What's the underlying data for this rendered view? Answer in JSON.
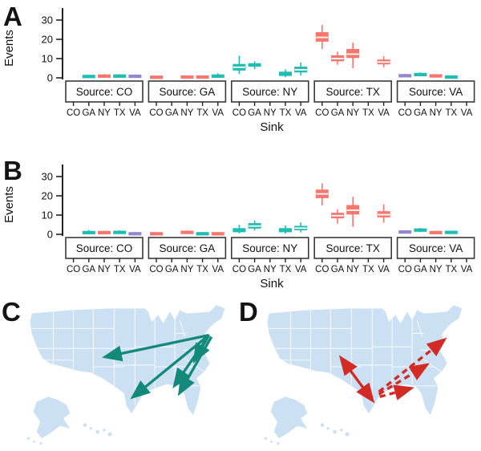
{
  "panels": {
    "a": "A",
    "b": "B",
    "c": "C",
    "d": "D"
  },
  "palette": {
    "red": "#F8766D",
    "teal": "#1FBDB2",
    "purple": "#9188D2"
  },
  "chart_data": [
    {
      "panel": "A",
      "type": "boxplot",
      "title": "",
      "ylabel": "Events",
      "xlabel": "Sink",
      "yticks": [
        0,
        10,
        20,
        30
      ],
      "ylim": [
        0,
        33
      ],
      "grid": false,
      "legend": "none",
      "sink_order": [
        "CO",
        "GA",
        "NY",
        "TX",
        "VA"
      ],
      "facets": [
        {
          "label": "Source: CO",
          "boxes": [
            {
              "sink": "GA",
              "color": "teal",
              "lo": 0.1,
              "q1": 0.3,
              "med": 0.7,
              "q3": 1.1,
              "hi": 1.6
            },
            {
              "sink": "NY",
              "color": "red",
              "lo": 0.1,
              "q1": 0.4,
              "med": 0.9,
              "q3": 1.4,
              "hi": 2.0
            },
            {
              "sink": "TX",
              "color": "teal",
              "lo": 0.1,
              "q1": 0.4,
              "med": 0.9,
              "q3": 1.3,
              "hi": 1.9
            },
            {
              "sink": "VA",
              "color": "purple",
              "lo": 0.1,
              "q1": 0.4,
              "med": 0.8,
              "q3": 1.3,
              "hi": 1.8
            }
          ]
        },
        {
          "label": "Source: GA",
          "boxes": [
            {
              "sink": "CO",
              "color": "red",
              "lo": 0,
              "q1": 0.1,
              "med": 0.3,
              "q3": 0.6,
              "hi": 0.9
            },
            {
              "sink": "NY",
              "color": "red",
              "lo": 0,
              "q1": 0.1,
              "med": 0.4,
              "q3": 0.7,
              "hi": 1.0
            },
            {
              "sink": "TX",
              "color": "red",
              "lo": 0,
              "q1": 0.1,
              "med": 0.4,
              "q3": 0.7,
              "hi": 1.0
            },
            {
              "sink": "VA",
              "color": "teal",
              "lo": 0.1,
              "q1": 0.4,
              "med": 0.9,
              "q3": 1.4,
              "hi": 2.4
            }
          ]
        },
        {
          "label": "Source: NY",
          "boxes": [
            {
              "sink": "CO",
              "color": "teal",
              "lo": 2.0,
              "q1": 4.0,
              "med": 5.5,
              "q3": 7.0,
              "hi": 11.5
            },
            {
              "sink": "GA",
              "color": "teal",
              "lo": 4.5,
              "q1": 6.0,
              "med": 6.6,
              "q3": 7.4,
              "hi": 8.6
            },
            {
              "sink": "TX",
              "color": "teal",
              "lo": 0.3,
              "q1": 1.2,
              "med": 2.0,
              "q3": 3.0,
              "hi": 4.4
            },
            {
              "sink": "VA",
              "color": "teal",
              "lo": 1.2,
              "q1": 3.0,
              "med": 4.2,
              "q3": 5.6,
              "hi": 8.0
            }
          ]
        },
        {
          "label": "Source: TX",
          "boxes": [
            {
              "sink": "CO",
              "color": "red",
              "lo": 15.0,
              "q1": 19.0,
              "med": 21.0,
              "q3": 23.5,
              "hi": 27.5
            },
            {
              "sink": "GA",
              "color": "red",
              "lo": 6.8,
              "q1": 8.8,
              "med": 10.0,
              "q3": 11.5,
              "hi": 13.6
            },
            {
              "sink": "NY",
              "color": "red",
              "lo": 5.0,
              "q1": 10.5,
              "med": 12.3,
              "q3": 14.8,
              "hi": 18.3
            },
            {
              "sink": "VA",
              "color": "red",
              "lo": 5.5,
              "q1": 7.2,
              "med": 8.2,
              "q3": 9.3,
              "hi": 11.2
            }
          ]
        },
        {
          "label": "Source: VA",
          "boxes": [
            {
              "sink": "CO",
              "color": "purple",
              "lo": 0.3,
              "q1": 0.8,
              "med": 1.1,
              "q3": 1.6,
              "hi": 2.1
            },
            {
              "sink": "GA",
              "color": "teal",
              "lo": 0.8,
              "q1": 1.3,
              "med": 1.7,
              "q3": 2.2,
              "hi": 2.8
            },
            {
              "sink": "NY",
              "color": "red",
              "lo": 0.2,
              "q1": 0.6,
              "med": 1.0,
              "q3": 1.5,
              "hi": 2.0
            },
            {
              "sink": "TX",
              "color": "teal",
              "lo": 0,
              "q1": 0.2,
              "med": 0.4,
              "q3": 0.7,
              "hi": 1.0
            }
          ]
        }
      ]
    },
    {
      "panel": "B",
      "type": "boxplot",
      "title": "",
      "ylabel": "Events",
      "xlabel": "Sink",
      "yticks": [
        0,
        10,
        20,
        30
      ],
      "ylim": [
        0,
        33
      ],
      "grid": false,
      "legend": "none",
      "sink_order": [
        "CO",
        "GA",
        "NY",
        "TX",
        "VA"
      ],
      "facets": [
        {
          "label": "Source: CO",
          "boxes": [
            {
              "sink": "GA",
              "color": "teal",
              "lo": 0.1,
              "q1": 0.4,
              "med": 0.9,
              "q3": 1.4,
              "hi": 2.2
            },
            {
              "sink": "NY",
              "color": "red",
              "lo": 0.1,
              "q1": 0.4,
              "med": 0.9,
              "q3": 1.4,
              "hi": 1.9
            },
            {
              "sink": "TX",
              "color": "teal",
              "lo": 0.1,
              "q1": 0.4,
              "med": 1.0,
              "q3": 1.5,
              "hi": 2.1
            },
            {
              "sink": "VA",
              "color": "purple",
              "lo": 0,
              "q1": 0.1,
              "med": 0.3,
              "q3": 0.5,
              "hi": 0.8
            }
          ]
        },
        {
          "label": "Source: GA",
          "boxes": [
            {
              "sink": "CO",
              "color": "red",
              "lo": 0,
              "q1": 0.1,
              "med": 0.3,
              "q3": 0.6,
              "hi": 0.9
            },
            {
              "sink": "NY",
              "color": "red",
              "lo": 0.2,
              "q1": 0.5,
              "med": 1.0,
              "q3": 1.5,
              "hi": 2.0
            },
            {
              "sink": "TX",
              "color": "teal",
              "lo": 0,
              "q1": 0.1,
              "med": 0.3,
              "q3": 0.6,
              "hi": 0.9
            },
            {
              "sink": "VA",
              "color": "red",
              "lo": 0,
              "q1": 0.1,
              "med": 0.3,
              "q3": 0.6,
              "hi": 0.9
            }
          ]
        },
        {
          "label": "Source: NY",
          "boxes": [
            {
              "sink": "CO",
              "color": "teal",
              "lo": 0.5,
              "q1": 1.3,
              "med": 2.0,
              "q3": 3.0,
              "hi": 5.0
            },
            {
              "sink": "GA",
              "color": "teal",
              "lo": 2.0,
              "q1": 3.2,
              "med": 4.3,
              "q3": 5.6,
              "hi": 7.2
            },
            {
              "sink": "TX",
              "color": "teal",
              "lo": 0.4,
              "q1": 1.3,
              "med": 2.0,
              "q3": 3.0,
              "hi": 4.6
            },
            {
              "sink": "VA",
              "color": "teal",
              "lo": 1.0,
              "q1": 2.3,
              "med": 3.2,
              "q3": 4.2,
              "hi": 6.2
            }
          ]
        },
        {
          "label": "Source: TX",
          "boxes": [
            {
              "sink": "CO",
              "color": "red",
              "lo": 15.0,
              "q1": 19.0,
              "med": 21.0,
              "q3": 23.0,
              "hi": 26.5
            },
            {
              "sink": "GA",
              "color": "red",
              "lo": 5.5,
              "q1": 8.5,
              "med": 9.7,
              "q3": 11.0,
              "hi": 13.0
            },
            {
              "sink": "NY",
              "color": "red",
              "lo": 4.0,
              "q1": 10.5,
              "med": 12.5,
              "q3": 15.0,
              "hi": 19.5
            },
            {
              "sink": "VA",
              "color": "red",
              "lo": 6.0,
              "q1": 9.0,
              "med": 10.2,
              "q3": 11.8,
              "hi": 15.5
            }
          ]
        },
        {
          "label": "Source: VA",
          "boxes": [
            {
              "sink": "CO",
              "color": "purple",
              "lo": 0.4,
              "q1": 0.8,
              "med": 1.2,
              "q3": 1.6,
              "hi": 2.1
            },
            {
              "sink": "GA",
              "color": "teal",
              "lo": 1.2,
              "q1": 1.7,
              "med": 2.2,
              "q3": 2.7,
              "hi": 3.3
            },
            {
              "sink": "NY",
              "color": "red",
              "lo": 0.2,
              "q1": 0.5,
              "med": 0.9,
              "q3": 1.3,
              "hi": 1.8
            },
            {
              "sink": "TX",
              "color": "teal",
              "lo": 0.3,
              "q1": 0.7,
              "med": 1.0,
              "q3": 1.4,
              "hi": 1.9
            }
          ]
        }
      ]
    }
  ],
  "maps": {
    "map_fill": "#CBE0F2",
    "c": {
      "source": "NY",
      "color": "#12897B",
      "arrows": [
        {
          "sink": "CO",
          "from": [
            227,
            42
          ],
          "to": [
            103,
            68
          ],
          "dashed": false,
          "double": false
        },
        {
          "sink": "TX",
          "from": [
            227,
            42
          ],
          "to": [
            136,
            116
          ],
          "dashed": false,
          "double": false
        },
        {
          "sink": "VA",
          "from": [
            227,
            42
          ],
          "to": [
            210,
            72
          ],
          "dashed": false,
          "double": false
        },
        {
          "sink": "GA",
          "from": [
            227,
            42
          ],
          "to": [
            186,
            102
          ],
          "dashed": false,
          "double": false
        },
        {
          "sink": "GA",
          "from": [
            230,
            44
          ],
          "to": [
            192,
            111
          ],
          "dashed": false,
          "double": false
        }
      ]
    },
    "d": {
      "source": "TX",
      "color": "#D22B25",
      "arrows": [
        {
          "sink": "CO",
          "from": [
            138,
            120
          ],
          "to": [
            101,
            70
          ],
          "dashed": false,
          "double": true
        },
        {
          "sink": "NY",
          "from": [
            146,
            110
          ],
          "to": [
            224,
            48
          ],
          "dashed": true,
          "double": false
        },
        {
          "sink": "VA",
          "from": [
            146,
            113
          ],
          "to": [
            203,
            78
          ],
          "dashed": true,
          "double": false
        },
        {
          "sink": "GA",
          "from": [
            147,
            116
          ],
          "to": [
            184,
            106
          ],
          "dashed": true,
          "double": false
        }
      ]
    }
  }
}
